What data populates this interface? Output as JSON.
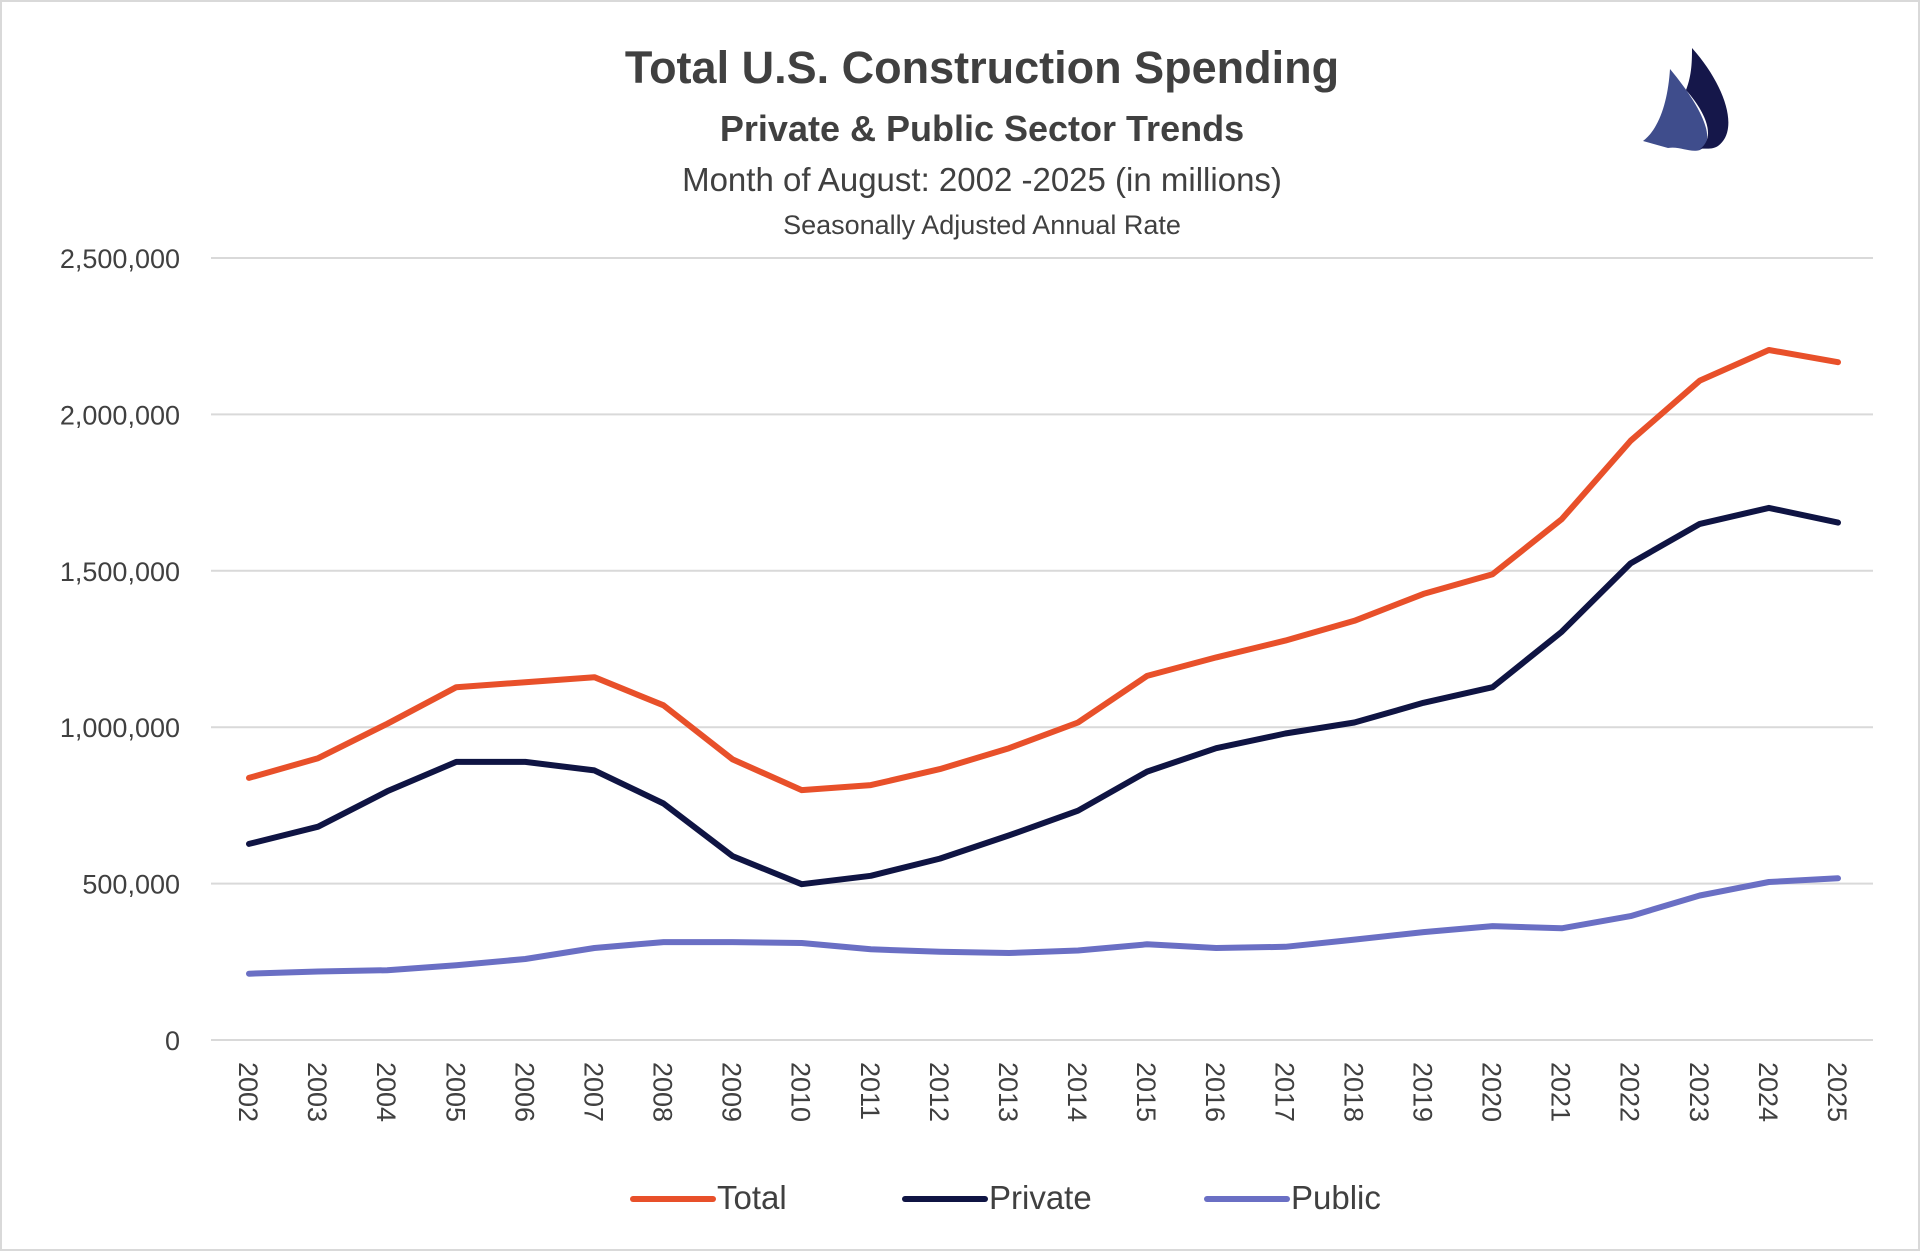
{
  "chart_data": {
    "type": "line",
    "title": "Total U.S. Construction Spending",
    "subtitle": "Private & Public Sector Trends",
    "subtitle2": "Month of August: 2002 -2025 (in millions)",
    "subtitle3": "Seasonally Adjusted Annual Rate",
    "xlabel": "",
    "ylabel": "",
    "ylim": [
      0,
      2500000
    ],
    "yticks": [
      0,
      500000,
      1000000,
      1500000,
      2000000,
      2500000
    ],
    "ytick_labels": [
      "0",
      "500,000",
      "1,000,000",
      "1,500,000",
      "2,000,000",
      "2,500,000"
    ],
    "grid": "horizontal",
    "legend": "bottom",
    "categories": [
      "2002",
      "2003",
      "2004",
      "2005",
      "2006",
      "2007",
      "2008",
      "2009",
      "2010",
      "2011",
      "2012",
      "2013",
      "2014",
      "2015",
      "2016",
      "2017",
      "2018",
      "2019",
      "2020",
      "2021",
      "2022",
      "2023",
      "2024",
      "2025"
    ],
    "series": [
      {
        "name": "Total",
        "color": "#e8502a",
        "values": [
          838000,
          901000,
          1011000,
          1128000,
          1144000,
          1160000,
          1070000,
          897000,
          799000,
          815000,
          866000,
          933000,
          1015000,
          1164000,
          1223000,
          1277000,
          1340000,
          1426000,
          1489000,
          1665000,
          1916000,
          2108000,
          2206000,
          2167000
        ]
      },
      {
        "name": "Private",
        "color": "#0f1443",
        "values": [
          627000,
          682000,
          795000,
          889000,
          889000,
          862000,
          756000,
          588000,
          498000,
          525000,
          580000,
          654000,
          733000,
          858000,
          933000,
          980000,
          1015000,
          1078000,
          1128000,
          1305000,
          1524000,
          1650000,
          1701000,
          1654000
        ]
      },
      {
        "name": "Public",
        "color": "#6a6fc4",
        "values": [
          212000,
          219000,
          223000,
          239000,
          259000,
          294000,
          313000,
          313000,
          310000,
          290000,
          282000,
          278000,
          286000,
          306000,
          294000,
          298000,
          321000,
          345000,
          364000,
          357000,
          396000,
          462000,
          505000,
          517000
        ]
      }
    ]
  },
  "logo": {
    "name": "sailboat-logo",
    "colors": [
      "#3f4d8c",
      "#15174a"
    ]
  }
}
